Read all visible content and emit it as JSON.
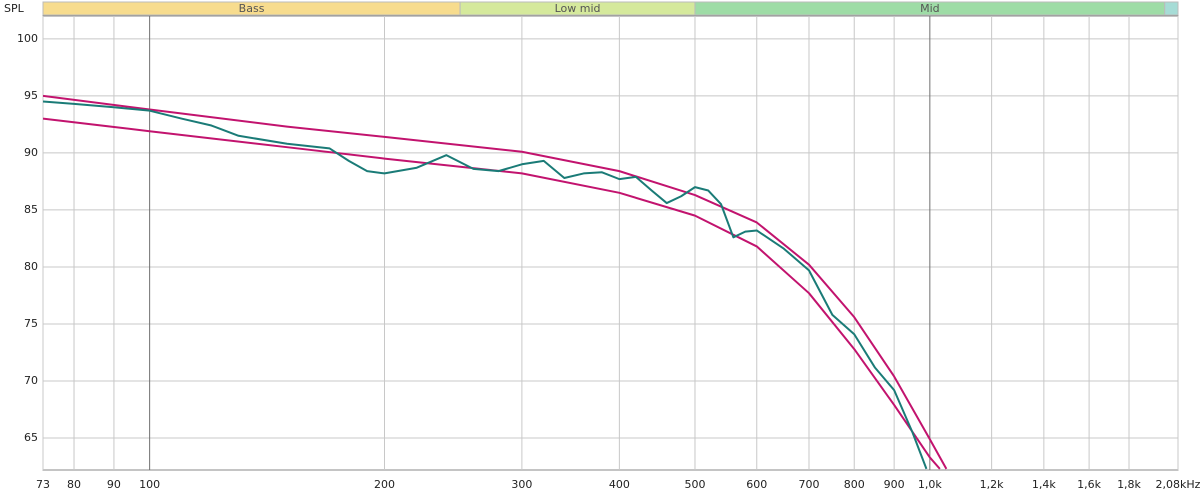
{
  "chart_data": {
    "type": "line",
    "y_label": "SPL",
    "xscale": "log",
    "xlim": [
      73,
      2080
    ],
    "ylim": [
      62.2,
      102
    ],
    "grid": true,
    "xticks": [
      73,
      80,
      90,
      100,
      200,
      300,
      400,
      500,
      600,
      700,
      800,
      900,
      {
        "value": 1000,
        "label": "1,0k"
      },
      {
        "value": 1200,
        "label": "1,2k"
      },
      {
        "value": 1400,
        "label": "1,4k"
      },
      {
        "value": 1600,
        "label": "1,6k"
      },
      {
        "value": 1800,
        "label": "1,8k"
      },
      {
        "value": 2080,
        "label": "2,08kHz"
      }
    ],
    "major_xticks": [
      100,
      1000
    ],
    "yticks": [
      65,
      70,
      75,
      80,
      85,
      90,
      95,
      100
    ],
    "bands": [
      {
        "label": "Bass",
        "range": [
          73,
          250
        ],
        "color": "#f7dc8e"
      },
      {
        "label": "Low mid",
        "range": [
          250,
          500
        ],
        "color": "#d5e99c"
      },
      {
        "label": "Mid",
        "range": [
          500,
          2000
        ],
        "color": "#9edca6"
      },
      {
        "range": [
          2000,
          2080
        ],
        "color": "#a6dcd6"
      }
    ],
    "series": [
      {
        "color": "#c2136e",
        "x": [
          73,
          100,
          150,
          200,
          300,
          400,
          500,
          600,
          700,
          800,
          900,
          1000,
          1050
        ],
        "values": [
          95.0,
          93.8,
          92.3,
          91.4,
          90.1,
          88.4,
          86.3,
          83.9,
          80.2,
          75.6,
          70.4,
          64.9,
          62.3
        ]
      },
      {
        "color": "#c2136e",
        "x": [
          73,
          100,
          150,
          200,
          300,
          400,
          500,
          600,
          700,
          800,
          900,
          1000,
          1030
        ],
        "values": [
          93.0,
          91.9,
          90.5,
          89.5,
          88.2,
          86.5,
          84.5,
          81.8,
          77.7,
          72.8,
          67.9,
          63.3,
          62.3
        ]
      },
      {
        "color": "#1a7b77",
        "x": [
          73,
          80,
          90,
          100,
          110,
          120,
          130,
          150,
          170,
          180,
          190,
          200,
          220,
          240,
          260,
          280,
          300,
          320,
          340,
          360,
          380,
          400,
          420,
          440,
          460,
          480,
          500,
          520,
          540,
          560,
          580,
          600,
          650,
          700,
          750,
          800,
          850,
          900,
          950,
          990
        ],
        "values": [
          94.5,
          94.3,
          94.0,
          93.7,
          93.0,
          92.4,
          91.5,
          90.8,
          90.4,
          89.3,
          88.4,
          88.2,
          88.7,
          89.8,
          88.6,
          88.4,
          89.0,
          89.3,
          87.8,
          88.2,
          88.3,
          87.7,
          87.9,
          86.7,
          85.6,
          86.2,
          87.0,
          86.7,
          85.5,
          82.6,
          83.1,
          83.2,
          81.6,
          79.7,
          75.8,
          74.1,
          71.2,
          69.2,
          65.5,
          62.3
        ]
      }
    ]
  }
}
